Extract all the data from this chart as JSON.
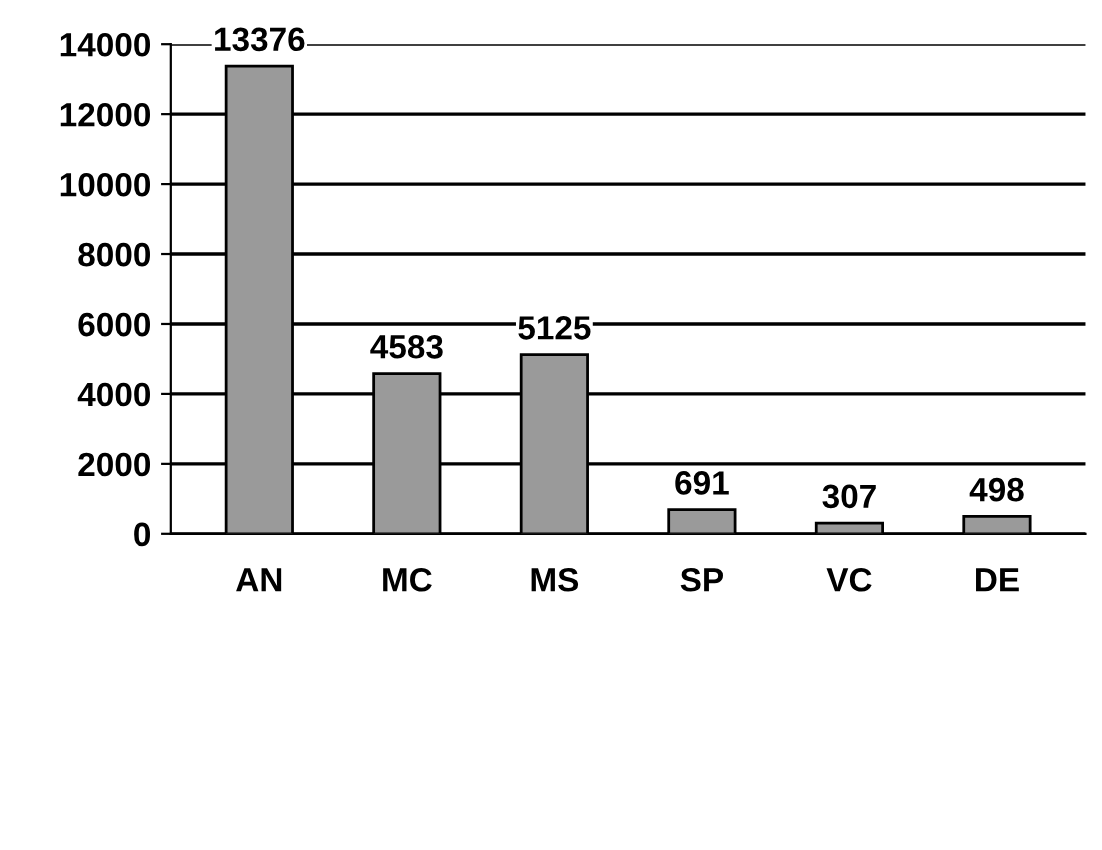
{
  "chart_data": {
    "type": "bar",
    "categories": [
      "AN",
      "MC",
      "MS",
      "SP",
      "VC",
      "DE"
    ],
    "values": [
      13376,
      4583,
      5125,
      691,
      307,
      498
    ],
    "color": "#9a9a9a",
    "ylim": [
      0,
      14000
    ],
    "yticks": [
      0,
      2000,
      4000,
      6000,
      8000,
      10000,
      12000,
      14000
    ],
    "grid": "y",
    "data_labels": true
  }
}
